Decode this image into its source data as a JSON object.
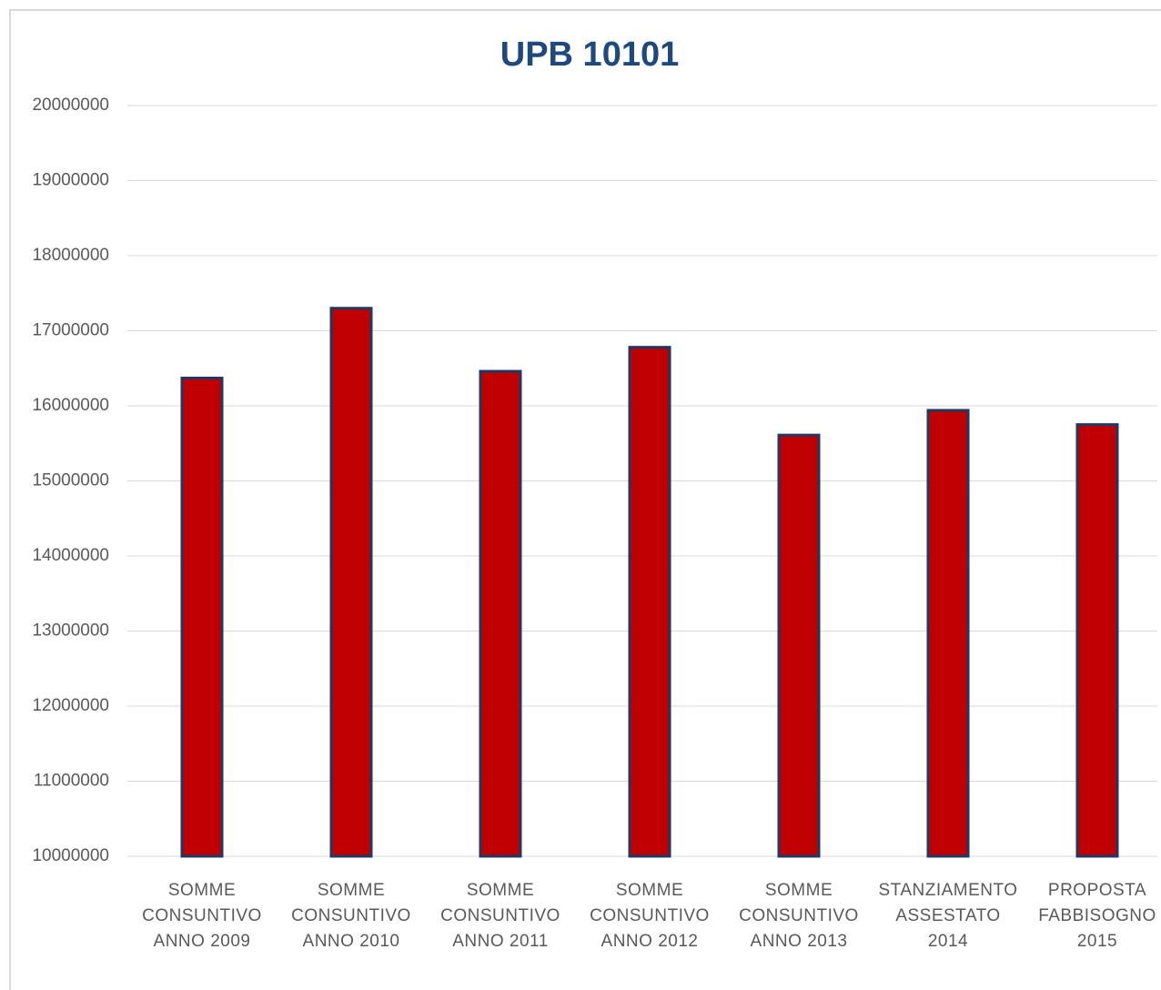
{
  "chart_data": {
    "type": "bar",
    "title": "UPB 10101",
    "categories": [
      "SOMME CONSUNTIVO ANNO 2009",
      "SOMME CONSUNTIVO ANNO 2010",
      "SOMME CONSUNTIVO ANNO 2011",
      "SOMME CONSUNTIVO ANNO 2012",
      "SOMME CONSUNTIVO ANNO 2013",
      "STANZIAMENTO ASSESTATO 2014",
      "PROPOSTA FABBISOGNO 2015"
    ],
    "values": [
      16370000,
      17300000,
      16460000,
      16780000,
      15610000,
      15940000,
      15750000
    ],
    "color": "#c00000",
    "edge_color": "#1f3864",
    "ylim": [
      10000000,
      20000000
    ],
    "yticks": [
      10000000,
      11000000,
      12000000,
      13000000,
      14000000,
      15000000,
      16000000,
      17000000,
      18000000,
      19000000,
      20000000
    ],
    "grid": true
  }
}
